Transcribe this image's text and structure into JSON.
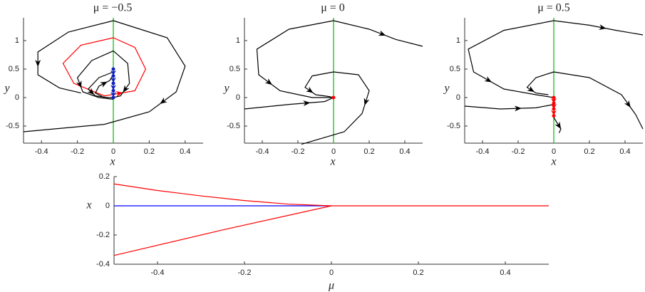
{
  "chart_data": [
    {
      "type": "line",
      "title": "μ = −0.5",
      "x_label": "x",
      "y_label": "y",
      "xlim": [
        -0.5,
        0.5
      ],
      "ylim": [
        -0.8,
        1.4
      ],
      "xticks": [
        -0.4,
        -0.2,
        0,
        0.2,
        0.4
      ],
      "yticks": [
        -0.5,
        0,
        0.5,
        1
      ],
      "series": [
        {
          "color": "#00bb00",
          "x": [
            0,
            0
          ],
          "values": [
            -0.8,
            1.4
          ]
        },
        {
          "color": "#000000",
          "x": [
            0,
            0.3,
            0.4,
            0.35,
            0.2,
            -0.05,
            -0.5
          ],
          "values": [
            1.35,
            1.05,
            0.55,
            0.1,
            -0.25,
            -0.47,
            -0.6
          ]
        },
        {
          "color": "#000000",
          "x": [
            0,
            -0.25,
            -0.42,
            -0.42,
            -0.3,
            -0.18
          ],
          "values": [
            1.35,
            1.15,
            0.8,
            0.4,
            0.17,
            0.08
          ]
        },
        {
          "color": "#ff0000",
          "x": [
            0,
            -0.18,
            -0.28,
            -0.22,
            -0.05,
            0.12,
            0.18,
            0.12,
            0
          ],
          "values": [
            1.05,
            0.92,
            0.6,
            0.25,
            0.03,
            0.12,
            0.5,
            0.88,
            1.05
          ]
        },
        {
          "color": "#000000",
          "x": [
            0,
            -0.12,
            -0.2,
            -0.17,
            -0.08,
            0
          ],
          "values": [
            0.82,
            0.65,
            0.35,
            0.1,
            0.0,
            -0.03
          ]
        },
        {
          "color": "#000000",
          "x": [
            0,
            0.08,
            0.09,
            0.04,
            0
          ],
          "values": [
            0.82,
            0.6,
            0.25,
            0.03,
            0
          ]
        },
        {
          "color": "#000000",
          "x": [
            0,
            -0.08,
            -0.14,
            -0.1,
            -0.03,
            0
          ],
          "values": [
            0.45,
            0.35,
            0.15,
            0.03,
            0.0,
            0
          ]
        },
        {
          "color": "#000000",
          "x": [
            -0.05,
            -0.1,
            -0.08,
            -0.02,
            0
          ],
          "values": [
            0.0,
            0.08,
            0.2,
            0.3,
            0.4
          ]
        },
        {
          "color": "#1020c0",
          "marker": true,
          "x": [
            0,
            0,
            0,
            0,
            0
          ],
          "values": [
            0.5,
            0.38,
            0.25,
            0.12,
            0
          ]
        }
      ]
    },
    {
      "type": "line",
      "title": "μ = 0",
      "x_label": "x",
      "y_label": "y",
      "xlim": [
        -0.5,
        0.5
      ],
      "ylim": [
        -0.8,
        1.4
      ],
      "xticks": [
        -0.4,
        -0.2,
        0,
        0.2,
        0.4
      ],
      "yticks": [
        -0.5,
        0,
        0.5,
        1
      ],
      "series": [
        {
          "color": "#00bb00",
          "x": [
            0,
            0
          ],
          "values": [
            -0.8,
            1.4
          ]
        },
        {
          "color": "#000000",
          "x": [
            0,
            0.2,
            0.35,
            0.5
          ],
          "values": [
            1.35,
            1.2,
            1.02,
            0.9
          ]
        },
        {
          "color": "#000000",
          "x": [
            0,
            -0.25,
            -0.43,
            -0.42,
            -0.3,
            -0.12,
            0
          ],
          "values": [
            1.35,
            1.2,
            0.85,
            0.4,
            0.12,
            0.0,
            0
          ]
        },
        {
          "color": "#000000",
          "x": [
            0,
            -0.12,
            -0.16,
            -0.1,
            -0.03,
            0
          ],
          "values": [
            0.45,
            0.38,
            0.18,
            0.05,
            0.02,
            0
          ]
        },
        {
          "color": "#000000",
          "x": [
            0,
            0.14,
            0.2,
            0.16,
            0.06,
            -0.18
          ],
          "values": [
            0.45,
            0.4,
            0.12,
            -0.28,
            -0.6,
            -0.82
          ]
        },
        {
          "color": "#000000",
          "x": [
            -0.5,
            -0.25,
            -0.05,
            0
          ],
          "values": [
            -0.2,
            -0.12,
            -0.07,
            0
          ]
        },
        {
          "color": "#ff0000",
          "marker": true,
          "x": [
            0
          ],
          "values": [
            0
          ]
        }
      ]
    },
    {
      "type": "line",
      "title": "μ = 0.5",
      "x_label": "x",
      "y_label": "y",
      "xlim": [
        -0.5,
        0.5
      ],
      "ylim": [
        -0.8,
        1.4
      ],
      "xticks": [
        -0.4,
        -0.2,
        0,
        0.2,
        0.4
      ],
      "yticks": [
        -0.5,
        0,
        0.5,
        1
      ],
      "series": [
        {
          "color": "#00bb00",
          "x": [
            0,
            0
          ],
          "values": [
            -0.8,
            1.4
          ]
        },
        {
          "color": "#000000",
          "x": [
            0,
            0.2,
            0.35,
            0.5
          ],
          "values": [
            1.35,
            1.27,
            1.18,
            1.1
          ]
        },
        {
          "color": "#000000",
          "x": [
            0,
            -0.28,
            -0.48,
            -0.45,
            -0.28,
            -0.1,
            0
          ],
          "values": [
            1.35,
            1.18,
            0.85,
            0.45,
            0.15,
            0.05,
            0
          ]
        },
        {
          "color": "#000000",
          "x": [
            0,
            0.2,
            0.38,
            0.46,
            0.5
          ],
          "values": [
            0.45,
            0.35,
            0.05,
            -0.3,
            -0.55
          ]
        },
        {
          "color": "#000000",
          "x": [
            0,
            -0.1,
            -0.15,
            -0.1,
            -0.03
          ],
          "values": [
            0.45,
            0.35,
            0.18,
            0.08,
            0.05
          ]
        },
        {
          "color": "#000000",
          "x": [
            -0.5,
            -0.3,
            -0.1,
            0
          ],
          "values": [
            -0.15,
            -0.2,
            -0.18,
            -0.12
          ]
        },
        {
          "color": "#000000",
          "x": [
            0,
            0.02,
            0.04,
            0.03
          ],
          "values": [
            -0.35,
            -0.45,
            -0.55,
            -0.62
          ]
        },
        {
          "color": "#ff0000",
          "marker": true,
          "x": [
            0,
            0,
            0,
            0
          ],
          "values": [
            0,
            -0.1,
            -0.2,
            -0.32
          ]
        }
      ]
    },
    {
      "type": "line",
      "x_label": "μ",
      "y_label": "x",
      "xlim": [
        -0.5,
        0.5
      ],
      "ylim": [
        -0.4,
        0.2
      ],
      "xticks": [
        -0.4,
        -0.2,
        0,
        0.2,
        0.4
      ],
      "yticks": [
        -0.4,
        -0.2,
        0,
        0.2
      ],
      "series": [
        {
          "color": "#0000ff",
          "x": [
            -0.5,
            0
          ],
          "values": [
            0,
            0
          ]
        },
        {
          "color": "#ff0000",
          "x": [
            -0.5,
            -0.4,
            -0.3,
            -0.2,
            -0.1,
            0
          ],
          "values": [
            0.15,
            0.105,
            0.068,
            0.036,
            0.012,
            0
          ]
        },
        {
          "color": "#ff0000",
          "x": [
            -0.5,
            -0.25,
            0
          ],
          "values": [
            -0.34,
            -0.165,
            0
          ]
        },
        {
          "color": "#ff0000",
          "x": [
            0,
            0.5
          ],
          "values": [
            0,
            0
          ]
        }
      ]
    }
  ]
}
